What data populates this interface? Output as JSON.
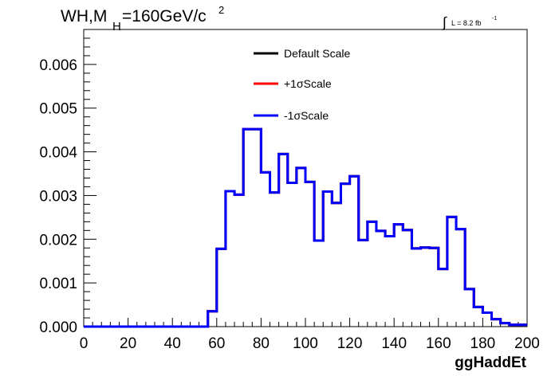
{
  "chart_data": {
    "type": "line",
    "title_main": "WH,M",
    "title_sub": "H",
    "title_rest": "=160GeV/c",
    "title_sup": "2",
    "lumi_prefix": "∫",
    "lumi_text": "L = 8.2 fb",
    "lumi_sup": "-1",
    "xlabel": "ggHaddEt",
    "ylabel": "",
    "xlim": [
      0,
      200
    ],
    "ylim": [
      0,
      0.0068
    ],
    "x_ticks": [
      "0",
      "20",
      "40",
      "60",
      "80",
      "100",
      "120",
      "140",
      "160",
      "180",
      "200"
    ],
    "y_ticks": [
      "0.000",
      "0.001",
      "0.002",
      "0.003",
      "0.004",
      "0.005",
      "0.006"
    ],
    "bin_edges": [
      0,
      4,
      8,
      12,
      16,
      20,
      24,
      28,
      32,
      36,
      40,
      44,
      48,
      52,
      56,
      60,
      64,
      68,
      72,
      76,
      80,
      84,
      88,
      92,
      96,
      100,
      104,
      108,
      112,
      116,
      120,
      124,
      128,
      132,
      136,
      140,
      144,
      148,
      152,
      156,
      160,
      164,
      168,
      172,
      176,
      180,
      184,
      188,
      192,
      196,
      200
    ],
    "series": [
      {
        "name": "Default Scale",
        "color": "#000000",
        "values": [
          0,
          0,
          0,
          0,
          0,
          0,
          0,
          0,
          0,
          0,
          0,
          0,
          0,
          0,
          0.00035,
          0.00178,
          0.0031,
          0.00302,
          0.00452,
          0.00452,
          0.00353,
          0.00307,
          0.00395,
          0.00329,
          0.00363,
          0.00331,
          0.00197,
          0.00309,
          0.00283,
          0.00327,
          0.00344,
          0.00198,
          0.0024,
          0.00219,
          0.00207,
          0.00234,
          0.00221,
          0.00179,
          0.00181,
          0.0018,
          0.00132,
          0.00251,
          0.00223,
          0.00086,
          0.00045,
          0.00032,
          0.00017,
          8e-05,
          4e-05,
          4e-05
        ]
      },
      {
        "name": "+1σScale",
        "color": "#ff0000",
        "values": [
          0,
          0,
          0,
          0,
          0,
          0,
          0,
          0,
          0,
          0,
          0,
          0,
          0,
          0,
          0.00035,
          0.00178,
          0.0031,
          0.00302,
          0.00452,
          0.00452,
          0.00353,
          0.00307,
          0.00395,
          0.00329,
          0.00363,
          0.00331,
          0.00197,
          0.00309,
          0.00283,
          0.00327,
          0.00344,
          0.00198,
          0.0024,
          0.00219,
          0.00207,
          0.00234,
          0.00221,
          0.00179,
          0.00181,
          0.0018,
          0.00132,
          0.00251,
          0.00223,
          0.00086,
          0.00045,
          0.00032,
          0.00017,
          8e-05,
          4e-05,
          4e-05
        ]
      },
      {
        "name": "-1σScale",
        "color": "#0000ff",
        "values": [
          0,
          0,
          0,
          0,
          0,
          0,
          0,
          0,
          0,
          0,
          0,
          0,
          0,
          0,
          0.00035,
          0.00178,
          0.0031,
          0.00302,
          0.00452,
          0.00452,
          0.00353,
          0.00307,
          0.00395,
          0.00329,
          0.00363,
          0.00331,
          0.00197,
          0.00309,
          0.00283,
          0.00327,
          0.00344,
          0.00198,
          0.0024,
          0.00219,
          0.00207,
          0.00234,
          0.00221,
          0.00179,
          0.00181,
          0.0018,
          0.00132,
          0.00251,
          0.00223,
          0.00086,
          0.00045,
          0.00032,
          0.00017,
          8e-05,
          4e-05,
          4e-05
        ]
      }
    ],
    "legend_placement": "top-center",
    "grid": false
  }
}
